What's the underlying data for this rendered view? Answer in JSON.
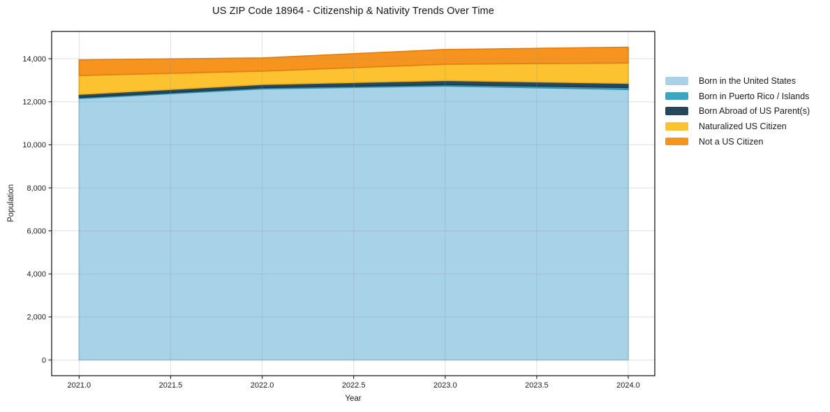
{
  "chart_data": {
    "type": "area",
    "stacked": true,
    "title": "US ZIP Code 18964 - Citizenship & Nativity Trends Over Time",
    "xlabel": "Year",
    "ylabel": "Population",
    "x": [
      2021,
      2022,
      2023,
      2024
    ],
    "series": [
      {
        "name": "Born in the United States",
        "color": "#a7d2e8",
        "edge_color": "#8fc2dc",
        "values": [
          12150,
          12600,
          12730,
          12570
        ]
      },
      {
        "name": "Born in Puerto Rico / Islands",
        "color": "#3ca5c2",
        "edge_color": "#2f8fae",
        "values": [
          50,
          55,
          65,
          90
        ]
      },
      {
        "name": "Born Abroad of US Parent(s)",
        "color": "#27485c",
        "edge_color": "#1c3848",
        "values": [
          145,
          150,
          195,
          195
        ]
      },
      {
        "name": "Naturalized US Citizen",
        "color": "#fcc230",
        "edge_color": "#eeb013",
        "values": [
          875,
          620,
          755,
          950
        ]
      },
      {
        "name": "Not a US Citizen",
        "color": "#f6941e",
        "edge_color": "#e17d12",
        "values": [
          730,
          615,
          685,
          735
        ]
      }
    ],
    "x_ticks": [
      2021.0,
      2021.5,
      2022.0,
      2022.5,
      2023.0,
      2023.5,
      2024.0
    ],
    "x_tick_labels": [
      "2021.0",
      "2021.5",
      "2022.0",
      "2022.5",
      "2023.0",
      "2023.5",
      "2024.0"
    ],
    "y_ticks": [
      0,
      2000,
      4000,
      6000,
      8000,
      10000,
      12000,
      14000
    ],
    "y_tick_labels": [
      "0",
      "2,000",
      "4,000",
      "6,000",
      "8,000",
      "10,000",
      "12,000",
      "14,000"
    ],
    "xlim": [
      2020.85,
      2024.145
    ],
    "ylim": [
      -730,
      15270
    ],
    "grid": true,
    "legend_position": "outside-right"
  },
  "style_colors": {
    "grid": "rgba(150,150,150,0.30)",
    "frame": "#1a1a1a",
    "tick_text": "#1a1a1a",
    "background": "#ffffff"
  }
}
